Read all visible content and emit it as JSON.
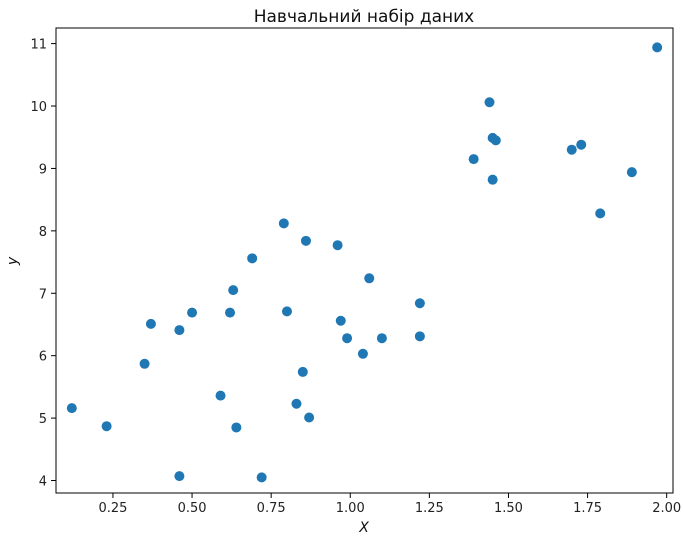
{
  "chart_data": {
    "type": "scatter",
    "title": "Навчальний набір даних",
    "xlabel": "X",
    "ylabel": "y",
    "xlim": [
      0.07,
      2.02
    ],
    "ylim": [
      3.8,
      11.25
    ],
    "xticks": [
      0.25,
      0.5,
      0.75,
      1.0,
      1.25,
      1.5,
      1.75,
      2.0
    ],
    "xtick_labels": [
      "0.25",
      "0.50",
      "0.75",
      "1.00",
      "1.25",
      "1.50",
      "1.75",
      "2.00"
    ],
    "yticks": [
      4,
      5,
      6,
      7,
      8,
      9,
      10,
      11
    ],
    "ytick_labels": [
      "4",
      "5",
      "6",
      "7",
      "8",
      "9",
      "10",
      "11"
    ],
    "grid": false,
    "marker_color": "#1f77b4",
    "series": [
      {
        "points": [
          [
            0.12,
            5.16
          ],
          [
            0.23,
            4.87
          ],
          [
            0.35,
            5.87
          ],
          [
            0.37,
            6.51
          ],
          [
            0.46,
            6.41
          ],
          [
            0.46,
            4.07
          ],
          [
            0.5,
            6.69
          ],
          [
            0.59,
            5.36
          ],
          [
            0.62,
            6.69
          ],
          [
            0.63,
            7.05
          ],
          [
            0.64,
            4.85
          ],
          [
            0.69,
            7.56
          ],
          [
            0.72,
            4.05
          ],
          [
            0.79,
            8.12
          ],
          [
            0.8,
            6.71
          ],
          [
            0.83,
            5.23
          ],
          [
            0.85,
            5.74
          ],
          [
            0.86,
            7.84
          ],
          [
            0.87,
            5.01
          ],
          [
            0.96,
            7.77
          ],
          [
            0.97,
            6.56
          ],
          [
            0.99,
            6.28
          ],
          [
            1.04,
            6.03
          ],
          [
            1.06,
            7.24
          ],
          [
            1.1,
            6.28
          ],
          [
            1.22,
            6.84
          ],
          [
            1.22,
            6.31
          ],
          [
            1.39,
            9.15
          ],
          [
            1.44,
            10.06
          ],
          [
            1.45,
            9.49
          ],
          [
            1.45,
            8.82
          ],
          [
            1.46,
            9.45
          ],
          [
            1.7,
            9.3
          ],
          [
            1.73,
            9.38
          ],
          [
            1.79,
            8.28
          ],
          [
            1.89,
            8.94
          ],
          [
            1.97,
            10.94
          ]
        ]
      }
    ]
  }
}
